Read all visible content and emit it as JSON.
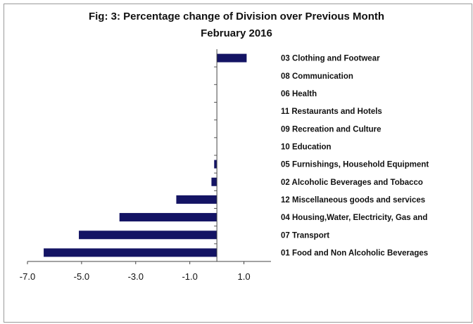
{
  "chart_data": {
    "type": "bar",
    "orientation": "horizontal",
    "title": "Fig: 3: Percentage change of Division over Previous Month",
    "subtitle": "February 2016",
    "categories": [
      "03 Clothing and Footwear",
      "08 Communication",
      "06 Health",
      "11 Restaurants and Hotels",
      "09 Recreation and Culture",
      "10 Education",
      "05 Furnishings, Household Equipment",
      "02 Alcoholic Beverages and Tobacco",
      "12 Miscellaneous goods and services",
      "04 Housing,Water, Electricity, Gas and",
      "07 Transport",
      "01 Food and Non Alcoholic Beverages"
    ],
    "values": [
      1.1,
      0.0,
      0.0,
      0.0,
      0.0,
      0.0,
      -0.1,
      -0.2,
      -1.5,
      -3.6,
      -5.1,
      -6.4
    ],
    "xlim": [
      -7.0,
      2.0
    ],
    "xticks": [
      "-7.0",
      "-5.0",
      "-3.0",
      "-1.0",
      "1.0"
    ],
    "bar_color": "#141464",
    "grid": false
  }
}
